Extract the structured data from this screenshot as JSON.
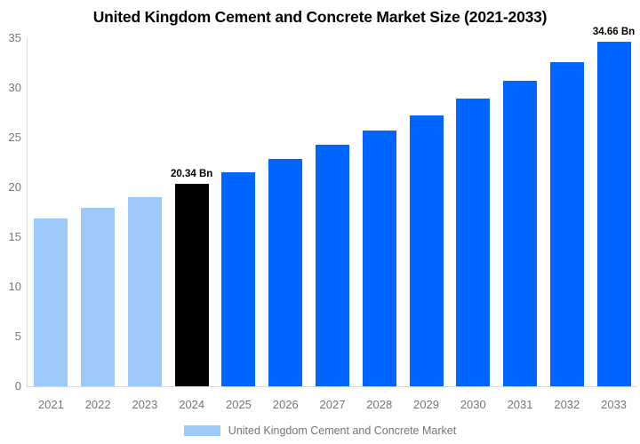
{
  "title": {
    "text": "United Kingdom Cement and Concrete Market Size (2021-2033)"
  },
  "legend": {
    "label": "United Kingdom Cement and Concrete Market",
    "swatch_color": "#9CC9F7"
  },
  "colors": {
    "light_blue": "#9CC9F7",
    "blue": "#0066FF",
    "black_bar": "#000000",
    "axis_line": "#D9D9D9",
    "tick_text": "#757575",
    "annotation_text": "#000000",
    "background": "#FFFFFF"
  },
  "chart_data": {
    "type": "bar",
    "title": "United Kingdom Cement and Concrete Market Size (2021-2033)",
    "categories": [
      "2021",
      "2022",
      "2023",
      "2024",
      "2025",
      "2026",
      "2027",
      "2028",
      "2029",
      "2030",
      "2031",
      "2032",
      "2033"
    ],
    "values": [
      16.9,
      17.95,
      19.05,
      20.34,
      21.55,
      22.85,
      24.25,
      25.7,
      27.25,
      28.95,
      30.7,
      32.6,
      34.66
    ],
    "unit": "Bn",
    "bar_colors": [
      "#9CC9F7",
      "#9CC9F7",
      "#9CC9F7",
      "#000000",
      "#0066FF",
      "#0066FF",
      "#0066FF",
      "#0066FF",
      "#0066FF",
      "#0066FF",
      "#0066FF",
      "#0066FF",
      "#0066FF"
    ],
    "annotations": [
      {
        "index": 3,
        "text": "20.34 Bn"
      },
      {
        "index": 12,
        "text": "34.66 Bn"
      }
    ],
    "xlabel": "",
    "ylabel": "",
    "ylim": [
      0,
      35
    ],
    "yticks": [
      0,
      5,
      10,
      15,
      20,
      25,
      30,
      35
    ],
    "grid": false,
    "legend_position": "bottom",
    "legend_entries": [
      "United Kingdom Cement and Concrete Market"
    ]
  }
}
